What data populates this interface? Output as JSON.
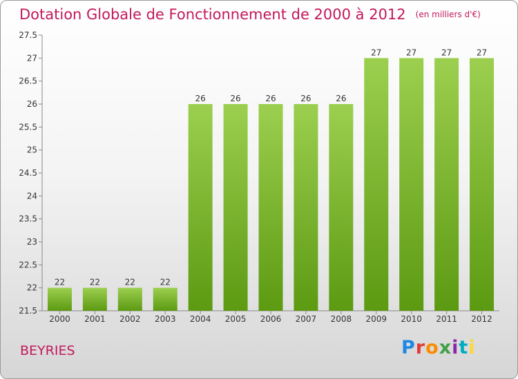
{
  "title": "Dotation Globale de Fonctionnement de 2000 à 2012",
  "unit_note": "(en milliers d'€)",
  "commune": "BEYRIES",
  "logo": {
    "text": "Proxiti"
  },
  "colors": {
    "accent": "#c2185b",
    "bar_top": "#9ccf4f",
    "bar_bottom": "#5c9a12"
  },
  "chart_data": {
    "type": "bar",
    "title": "Dotation Globale de Fonctionnement de 2000 à 2012",
    "subtitle": "(en milliers d'€)",
    "xlabel": "",
    "ylabel": "",
    "categories": [
      "2000",
      "2001",
      "2002",
      "2003",
      "2004",
      "2005",
      "2006",
      "2007",
      "2008",
      "2009",
      "2010",
      "2011",
      "2012"
    ],
    "values": [
      22,
      22,
      22,
      22,
      26,
      26,
      26,
      26,
      26,
      27,
      27,
      27,
      27
    ],
    "data_labels": [
      "22",
      "22",
      "22",
      "22",
      "26",
      "26",
      "26",
      "26",
      "26",
      "27",
      "27",
      "27",
      "27"
    ],
    "ylim": [
      21.5,
      27.5
    ],
    "yticks": [
      "21.5",
      "22",
      "22.5",
      "23",
      "23.5",
      "24",
      "24.5",
      "25",
      "25.5",
      "26",
      "26.5",
      "27",
      "27.5"
    ],
    "grid": false,
    "legend": "none"
  }
}
